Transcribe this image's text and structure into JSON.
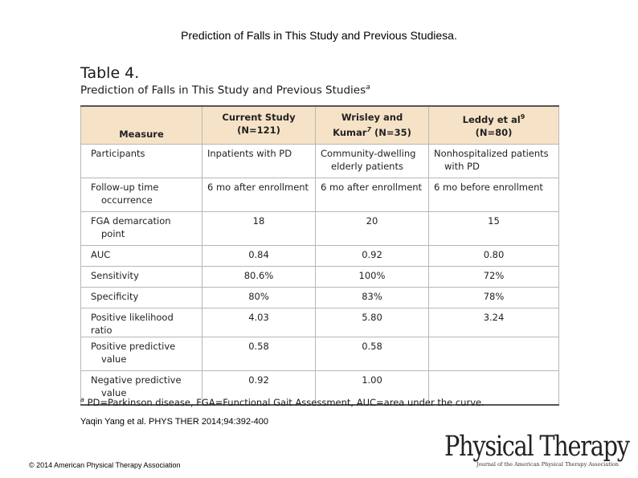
{
  "slide_title": "Prediction of Falls in This Study and Previous Studiesa.",
  "table_label": "Table 4.",
  "table_caption": "Prediction of Falls in This Study and Previous Studies",
  "table_caption_mark": "a",
  "header": {
    "measure": "Measure",
    "col1": [
      "Current Study",
      "(N=121)"
    ],
    "col2": [
      "Wrisley and",
      "Kumar",
      "7",
      " (N=35)"
    ],
    "col3": [
      "Leddy et al",
      "9",
      "(N=80)"
    ]
  },
  "rows": [
    {
      "measure": [
        "Participants"
      ],
      "current": [
        "Inpatients with PD"
      ],
      "wrisley": [
        "Community-dwelling",
        "elderly patients"
      ],
      "leddy": [
        "Nonhospitalized patients",
        "with PD"
      ]
    },
    {
      "measure": [
        "Follow-up time",
        "occurrence"
      ],
      "current": [
        "6 mo after enrollment"
      ],
      "wrisley": [
        "6 mo after enrollment"
      ],
      "leddy": [
        "6 mo before enrollment"
      ]
    },
    {
      "measure": [
        "FGA demarcation",
        "point"
      ],
      "current": [
        "18"
      ],
      "wrisley": [
        "20"
      ],
      "leddy": [
        "15"
      ]
    },
    {
      "measure": [
        "AUC"
      ],
      "current": [
        "0.84"
      ],
      "wrisley": [
        "0.92"
      ],
      "leddy": [
        "0.80"
      ]
    },
    {
      "measure": [
        "Sensitivity"
      ],
      "current": [
        "80.6%"
      ],
      "wrisley": [
        "100%"
      ],
      "leddy": [
        "72%"
      ]
    },
    {
      "measure": [
        "Specificity"
      ],
      "current": [
        "80%"
      ],
      "wrisley": [
        "83%"
      ],
      "leddy": [
        "78%"
      ]
    },
    {
      "measure": [
        "Positive likelihood ratio"
      ],
      "current": [
        "4.03"
      ],
      "wrisley": [
        "5.80"
      ],
      "leddy": [
        "3.24"
      ]
    },
    {
      "measure": [
        "Positive predictive",
        "value"
      ],
      "current": [
        "0.58"
      ],
      "wrisley": [
        "0.58"
      ],
      "leddy": [
        ""
      ]
    },
    {
      "measure": [
        "Negative predictive",
        "value"
      ],
      "current": [
        "0.92"
      ],
      "wrisley": [
        "1.00"
      ],
      "leddy": [
        ""
      ]
    }
  ],
  "footnote_mark": "a",
  "footnote": "PD=Parkinson disease, FGA=Functional Gait Assessment, AUC=area under the curve.",
  "citation": "Yaqin Yang et al. PHYS THER 2014;94:392-400",
  "copyright": "© 2014 American Physical Therapy Association",
  "logo": {
    "main": "Physical Therapy",
    "sub": "Journal of the American Physical Therapy Association"
  },
  "colors": {
    "header_bg": "#f6e3c7",
    "grid": "#b7b7b7"
  }
}
